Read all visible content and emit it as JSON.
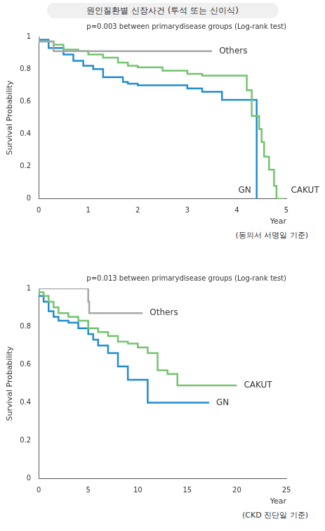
{
  "title": "원인질환별 신장사건 (투석 또는 신이식)",
  "chart_data": [
    {
      "type": "line",
      "subtitle": "p=0.003 between primarydisease groups (Log-rank test)",
      "annotations": [
        "(동의서 서명일 기준)"
      ],
      "x_label": "Year",
      "y_label": "Survival Probability",
      "xlim": [
        0,
        5
      ],
      "xticks": [
        0,
        1,
        2,
        3,
        4,
        5
      ],
      "ylim": [
        0,
        1
      ],
      "yticks": [
        0,
        0.2,
        0.4,
        0.6,
        0.8,
        1
      ],
      "grid": false,
      "line_style": "step",
      "series": [
        {
          "name": "Others",
          "color": "#a6a6a6",
          "x": [
            0,
            0.3,
            3.2,
            3.5
          ],
          "values": [
            1,
            0.97,
            0.91,
            0.91
          ]
        },
        {
          "name": "CAKUT",
          "color": "#72c46e",
          "x": [
            0,
            0.3,
            0.5,
            0.8,
            1.0,
            1.3,
            1.6,
            1.8,
            2.0,
            2.5,
            3.0,
            3.3,
            3.6,
            4.2,
            4.3,
            4.45,
            4.5,
            4.55,
            4.65,
            4.75,
            4.8,
            4.95
          ],
          "values": [
            1,
            0.97,
            0.95,
            0.92,
            0.91,
            0.89,
            0.87,
            0.84,
            0.82,
            0.81,
            0.79,
            0.77,
            0.76,
            0.76,
            0.67,
            0.51,
            0.43,
            0.35,
            0.26,
            0.18,
            0.08,
            0
          ]
        },
        {
          "name": "GN",
          "color": "#1f8ccf",
          "x": [
            0,
            0.2,
            0.5,
            0.7,
            0.9,
            1.1,
            1.3,
            1.7,
            1.8,
            2.0,
            3.0,
            3.3,
            3.7,
            4.0,
            4.4,
            4.4
          ],
          "values": [
            1,
            0.98,
            0.93,
            0.89,
            0.85,
            0.82,
            0.8,
            0.75,
            0.72,
            0.71,
            0.7,
            0.68,
            0.66,
            0.61,
            0.61,
            0
          ]
        }
      ]
    },
    {
      "type": "line",
      "subtitle": "p=0.013 between primarydisease groups (Log-rank test)",
      "annotations": [
        "(CKD 진단일 기준)"
      ],
      "x_label": "Year",
      "y_label": "Survival Probability",
      "xlim": [
        0,
        25
      ],
      "xticks": [
        0,
        5,
        10,
        15,
        20,
        25
      ],
      "ylim": [
        0,
        1
      ],
      "yticks": [
        0,
        0.2,
        0.4,
        0.6,
        0.8,
        1
      ],
      "grid": false,
      "line_style": "step",
      "series": [
        {
          "name": "Others",
          "color": "#a6a6a6",
          "x": [
            0,
            5.0,
            5.1,
            5.3,
            10.5
          ],
          "values": [
            1,
            1,
            0.93,
            0.87,
            0.87
          ]
        },
        {
          "name": "CAKUT",
          "color": "#72c46e",
          "x": [
            0,
            0.5,
            1,
            1.5,
            2,
            3,
            4,
            5,
            6,
            7,
            8,
            9,
            10,
            11,
            12,
            13,
            14,
            17,
            20
          ],
          "values": [
            1,
            0.98,
            0.96,
            0.93,
            0.9,
            0.87,
            0.85,
            0.83,
            0.79,
            0.77,
            0.75,
            0.72,
            0.71,
            0.69,
            0.66,
            0.57,
            0.55,
            0.49,
            0.49
          ]
        },
        {
          "name": "GN",
          "color": "#1f8ccf",
          "x": [
            0,
            0.5,
            1,
            1.5,
            2,
            3,
            4,
            5,
            5.5,
            6,
            7,
            8,
            9,
            10,
            11,
            13,
            17.2
          ],
          "values": [
            1,
            0.96,
            0.93,
            0.88,
            0.85,
            0.83,
            0.82,
            0.79,
            0.76,
            0.73,
            0.7,
            0.66,
            0.59,
            0.52,
            0.52,
            0.4,
            0.4
          ]
        }
      ]
    }
  ]
}
